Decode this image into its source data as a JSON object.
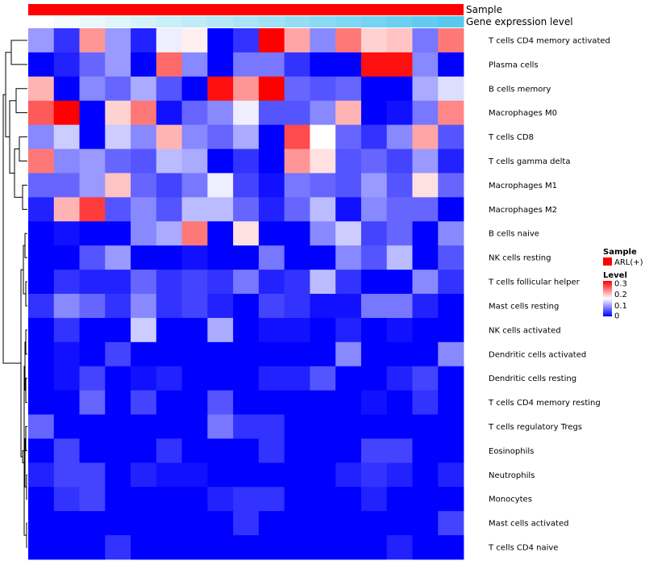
{
  "chart_data": {
    "type": "heatmap",
    "rows": [
      "T cells CD4 memory activated",
      "Plasma cells",
      "B cells memory",
      "Macrophages M0",
      "T cells CD8",
      "T cells gamma delta",
      "Macrophages M1",
      "Macrophages M2",
      "B cells naive",
      "NK cells resting",
      "T cells follicular helper",
      "Mast cells resting",
      "NK cells activated",
      "Dendritic cells activated",
      "Dendritic cells resting",
      "T cells CD4 memory resting",
      "T cells regulatory  Tregs",
      "Eosinophils",
      "Neutrophils",
      "Monocytes",
      "Mast cells activated",
      "T cells CD4 naive"
    ],
    "values": [
      [
        0.09,
        0.03,
        0.22,
        0.09,
        0.02,
        0.14,
        0.16,
        0.0,
        0.03,
        0.32,
        0.21,
        0.08,
        0.24,
        0.18,
        0.19,
        0.07,
        0.24
      ],
      [
        0.0,
        0.02,
        0.06,
        0.09,
        0.0,
        0.25,
        0.08,
        0.0,
        0.07,
        0.07,
        0.03,
        0.0,
        0.0,
        0.31,
        0.31,
        0.08,
        0.0
      ],
      [
        0.2,
        0.0,
        0.08,
        0.06,
        0.1,
        0.05,
        0.0,
        0.31,
        0.22,
        0.32,
        0.06,
        0.05,
        0.06,
        0.0,
        0.0,
        0.1,
        0.13
      ],
      [
        0.26,
        0.32,
        0.0,
        0.18,
        0.24,
        0.01,
        0.06,
        0.08,
        0.14,
        0.05,
        0.05,
        0.08,
        0.2,
        0.0,
        0.01,
        0.07,
        0.23
      ],
      [
        0.08,
        0.12,
        0.0,
        0.12,
        0.08,
        0.2,
        0.08,
        0.06,
        0.1,
        0.0,
        0.27,
        0.15,
        0.06,
        0.03,
        0.08,
        0.21,
        0.05
      ],
      [
        0.24,
        0.08,
        0.09,
        0.06,
        0.05,
        0.11,
        0.1,
        0.0,
        0.03,
        0.0,
        0.22,
        0.17,
        0.05,
        0.06,
        0.04,
        0.09,
        0.02
      ],
      [
        0.06,
        0.06,
        0.09,
        0.19,
        0.06,
        0.04,
        0.07,
        0.14,
        0.04,
        0.01,
        0.07,
        0.06,
        0.05,
        0.09,
        0.05,
        0.17,
        0.06
      ],
      [
        0.02,
        0.2,
        0.28,
        0.05,
        0.08,
        0.05,
        0.11,
        0.11,
        0.06,
        0.02,
        0.06,
        0.11,
        0.01,
        0.08,
        0.06,
        0.06,
        0.0
      ],
      [
        0.0,
        0.01,
        0.0,
        0.0,
        0.08,
        0.1,
        0.24,
        0.0,
        0.17,
        0.0,
        0.0,
        0.08,
        0.12,
        0.04,
        0.06,
        0.0,
        0.08
      ],
      [
        0.0,
        0.0,
        0.05,
        0.09,
        0.0,
        0.0,
        0.01,
        0.0,
        0.0,
        0.07,
        0.0,
        0.0,
        0.08,
        0.05,
        0.11,
        0.0,
        0.05
      ],
      [
        0.0,
        0.03,
        0.02,
        0.02,
        0.06,
        0.03,
        0.04,
        0.03,
        0.07,
        0.02,
        0.03,
        0.11,
        0.03,
        0.0,
        0.0,
        0.08,
        0.03
      ],
      [
        0.03,
        0.08,
        0.06,
        0.03,
        0.08,
        0.03,
        0.04,
        0.02,
        0.0,
        0.04,
        0.03,
        0.01,
        0.01,
        0.07,
        0.07,
        0.02,
        0.0
      ],
      [
        0.0,
        0.03,
        0.0,
        0.0,
        0.12,
        0.0,
        0.0,
        0.1,
        0.0,
        0.01,
        0.01,
        0.0,
        0.02,
        0.0,
        0.01,
        0.0,
        0.0
      ],
      [
        0.0,
        0.01,
        0.0,
        0.04,
        0.0,
        0.0,
        0.0,
        0.0,
        0.0,
        0.0,
        0.0,
        0.0,
        0.08,
        0.0,
        0.0,
        0.0,
        0.08
      ],
      [
        0.0,
        0.01,
        0.04,
        0.0,
        0.01,
        0.02,
        0.0,
        0.0,
        0.0,
        0.02,
        0.02,
        0.05,
        0.0,
        0.0,
        0.02,
        0.04,
        0.0
      ],
      [
        0.0,
        0.0,
        0.06,
        0.0,
        0.04,
        0.0,
        0.0,
        0.05,
        0.0,
        0.0,
        0.0,
        0.0,
        0.0,
        0.01,
        0.0,
        0.03,
        0.0
      ],
      [
        0.06,
        0.0,
        0.0,
        0.0,
        0.0,
        0.0,
        0.0,
        0.07,
        0.03,
        0.03,
        0.0,
        0.0,
        0.0,
        0.0,
        0.0,
        0.0,
        0.0
      ],
      [
        0.0,
        0.04,
        0.0,
        0.0,
        0.0,
        0.03,
        0.0,
        0.0,
        0.0,
        0.03,
        0.0,
        0.0,
        0.0,
        0.04,
        0.04,
        0.0,
        0.0
      ],
      [
        0.02,
        0.04,
        0.04,
        0.0,
        0.02,
        0.01,
        0.01,
        0.0,
        0.0,
        0.0,
        0.0,
        0.0,
        0.02,
        0.03,
        0.02,
        0.0,
        0.02
      ],
      [
        0.0,
        0.03,
        0.04,
        0.0,
        0.0,
        0.0,
        0.0,
        0.02,
        0.03,
        0.03,
        0.0,
        0.0,
        0.0,
        0.02,
        0.0,
        0.0,
        0.0
      ],
      [
        0.0,
        0.0,
        0.0,
        0.0,
        0.0,
        0.0,
        0.0,
        0.0,
        0.03,
        0.0,
        0.0,
        0.0,
        0.0,
        0.0,
        0.0,
        0.0,
        0.04
      ],
      [
        0.0,
        0.0,
        0.0,
        0.03,
        0.0,
        0.0,
        0.0,
        0.0,
        0.0,
        0.0,
        0.0,
        0.0,
        0.0,
        0.0,
        0.02,
        0.0,
        0.0
      ]
    ],
    "annotations": [
      {
        "label": "Sample",
        "color": "#ff0000"
      },
      {
        "label": "Gene expression level",
        "gradient": [
          "#ffffff",
          "#56c9ef"
        ]
      }
    ],
    "legend": {
      "sample_title": "Sample",
      "sample_entry": "ARL(+)",
      "sample_color": "#ff0000",
      "level_title": "Level",
      "level_ticks": [
        "0.3",
        "0.2",
        "0.1",
        "0"
      ],
      "level_tick_values": [
        0.3,
        0.2,
        0.1,
        0
      ]
    },
    "color_scale": {
      "min": 0,
      "mid": 0.15,
      "max": 0.32,
      "low": "#0000ff",
      "midcolor": "#ffffff",
      "high": "#ff0000"
    },
    "legend_placement": "right",
    "dendrogram": "rows, left side"
  }
}
